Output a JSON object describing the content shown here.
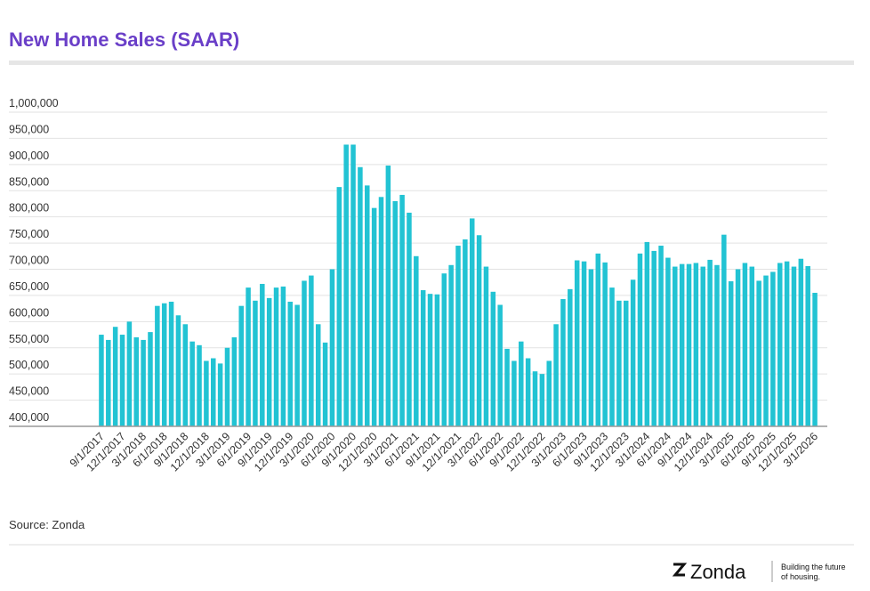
{
  "chart_data": {
    "type": "bar",
    "title": "New Home Sales (SAAR)",
    "source": "Source: Zonda",
    "brand": "Zonda",
    "tagline": [
      "Building the future",
      "of housing."
    ],
    "color": "#22c3d3",
    "grid": true,
    "ylim": [
      400000,
      1000000
    ],
    "yticks": [
      {
        "value": 400000,
        "label": "400,000"
      },
      {
        "value": 450000,
        "label": "450,000"
      },
      {
        "value": 500000,
        "label": "500,000"
      },
      {
        "value": 550000,
        "label": "550,000"
      },
      {
        "value": 600000,
        "label": "600,000"
      },
      {
        "value": 650000,
        "label": "650,000"
      },
      {
        "value": 700000,
        "label": "700,000"
      },
      {
        "value": 750000,
        "label": "750,000"
      },
      {
        "value": 800000,
        "label": "800,000"
      },
      {
        "value": 850000,
        "label": "850,000"
      },
      {
        "value": 900000,
        "label": "900,000"
      },
      {
        "value": 950000,
        "label": "950,000"
      },
      {
        "value": 1000000,
        "label": "1,000,000"
      }
    ],
    "categories": [
      "9/1/2017",
      null,
      null,
      "12/1/2017",
      null,
      null,
      "3/1/2018",
      null,
      null,
      "6/1/2018",
      null,
      null,
      "9/1/2018",
      null,
      null,
      "12/1/2018",
      null,
      null,
      "3/1/2019",
      null,
      null,
      "6/1/2019",
      null,
      null,
      "9/1/2019",
      null,
      null,
      "12/1/2019",
      null,
      null,
      "3/1/2020",
      null,
      null,
      "6/1/2020",
      null,
      null,
      "9/1/2020",
      null,
      null,
      "12/1/2020",
      null,
      null,
      "3/1/2021",
      null,
      null,
      "6/1/2021",
      null,
      null,
      "9/1/2021",
      null,
      null,
      "12/1/2021",
      null,
      null,
      "3/1/2022",
      null,
      null,
      "6/1/2022",
      null,
      null,
      "9/1/2022",
      null,
      null,
      "12/1/2022",
      null,
      null,
      "3/1/2023",
      null,
      null,
      "6/1/2023",
      null,
      null,
      "9/1/2023",
      null,
      null,
      "12/1/2023",
      null,
      null,
      "3/1/2024",
      null,
      null,
      "6/1/2024",
      null,
      null,
      "9/1/2024",
      null,
      null,
      "12/1/2024",
      null,
      null,
      "3/1/2025",
      null,
      null,
      "6/1/2025",
      null,
      null,
      "9/1/2025",
      null,
      null,
      "12/1/2025",
      null,
      null,
      "3/1/2026"
    ],
    "values": [
      575000,
      565000,
      590000,
      575000,
      600000,
      570000,
      565000,
      580000,
      630000,
      635000,
      638000,
      612000,
      595000,
      562000,
      555000,
      525000,
      530000,
      520000,
      550000,
      570000,
      630000,
      665000,
      640000,
      672000,
      645000,
      665000,
      667000,
      638000,
      632000,
      678000,
      688000,
      595000,
      560000,
      700000,
      857000,
      938000,
      938000,
      895000,
      860000,
      817000,
      838000,
      898000,
      830000,
      842000,
      808000,
      725000,
      660000,
      653000,
      652000,
      692000,
      708000,
      745000,
      757000,
      797000,
      765000,
      705000,
      657000,
      632000,
      548000,
      525000,
      562000,
      530000,
      505000,
      500000,
      525000,
      595000,
      643000,
      662000,
      717000,
      715000,
      700000,
      730000,
      713000,
      665000,
      640000,
      640000,
      680000,
      730000,
      752000,
      735000,
      745000,
      722000,
      705000,
      710000,
      710000,
      712000,
      705000,
      718000,
      708000,
      766000,
      677000,
      700000,
      712000,
      705000,
      678000,
      688000,
      695000,
      712000,
      715000,
      705000,
      720000,
      706000,
      655000
    ]
  }
}
